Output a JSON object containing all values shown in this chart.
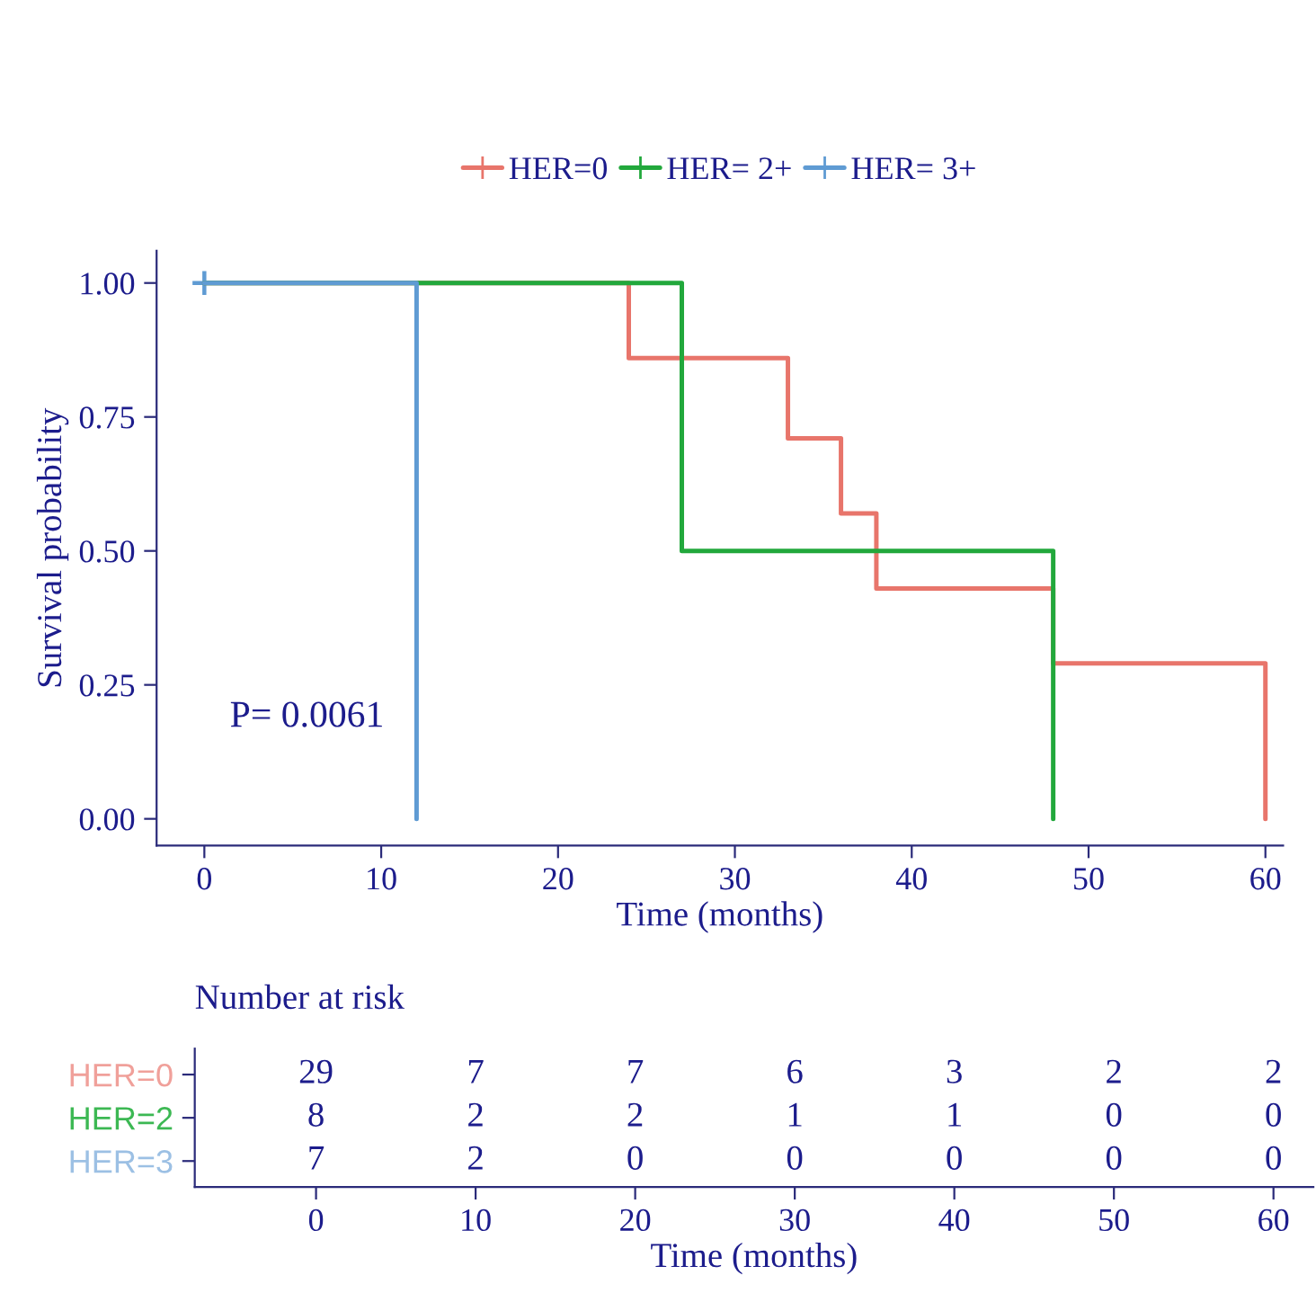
{
  "chart_data": [
    {
      "type": "step",
      "ylabel": "Survival probability",
      "xlabel": "Time (months)",
      "xlim": [
        -2.7,
        61
      ],
      "xticks": [
        0,
        10,
        20,
        30,
        40,
        50,
        60
      ],
      "ylim": [
        -0.05,
        1.06
      ],
      "yticks": [
        {
          "value": 0,
          "label": "0.00"
        },
        {
          "value": 0.25,
          "label": "0.25"
        },
        {
          "value": 0.5,
          "label": "0.50"
        },
        {
          "value": 0.75,
          "label": "0.75"
        },
        {
          "value": 1,
          "label": "1.00"
        }
      ],
      "legend": "top",
      "grid": false,
      "annotations": [
        "P= 0.0061"
      ],
      "series": [
        {
          "name": "HER=0",
          "color": "#e8756b",
          "x": [
            0,
            24,
            33,
            36,
            38,
            48,
            60
          ],
          "values": [
            1,
            0.86,
            0.71,
            0.57,
            0.43,
            0.29,
            0
          ]
        },
        {
          "name": "HER= 2+",
          "color": "#22a83c",
          "x": [
            0,
            27,
            48
          ],
          "values": [
            1,
            0.5,
            0
          ]
        },
        {
          "name": "HER= 3+",
          "color": "#5f9bd3",
          "x": [
            0,
            12
          ],
          "values": [
            1,
            0
          ]
        },
        {
          "type": "scatter",
          "color": "#5f9bd3",
          "x": [
            0
          ],
          "values": [
            1
          ],
          "marker": "cross"
        }
      ]
    },
    {
      "type": "heatmap",
      "title": "Number at risk",
      "xlabel": "Time (months)",
      "data_labels": true,
      "categories": [
        "0",
        "10",
        "20",
        "30",
        "40",
        "50",
        "60"
      ],
      "y_categories": [
        "HER=0",
        "HER=2",
        "HER=3"
      ],
      "colors": [
        "#f0a09a",
        "#3cb853",
        "#9cc0e4"
      ],
      "cells": [
        [
          29,
          7,
          7,
          6,
          3,
          2,
          2
        ],
        [
          8,
          2,
          2,
          1,
          1,
          0,
          0
        ],
        [
          7,
          2,
          0,
          0,
          0,
          0,
          0
        ]
      ]
    }
  ]
}
